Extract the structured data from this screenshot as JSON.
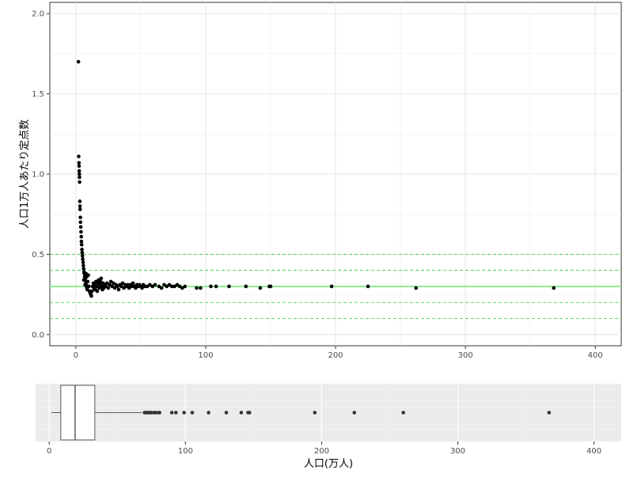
{
  "chart_data": [
    {
      "type": "scatter",
      "title": "",
      "xlabel": "",
      "ylabel": "人口1万人あたり定点数",
      "xlim": [
        -20,
        420
      ],
      "ylim": [
        -0.07,
        2.07
      ],
      "x_ticks": [
        "0",
        "100",
        "200",
        "300",
        "400"
      ],
      "y_ticks": [
        "0.0",
        "0.5",
        "1.0",
        "1.5",
        "2.0"
      ],
      "grid": true,
      "colors": {
        "points": "#000000",
        "mean_line": "#90ee90",
        "band_lines": "#33cc33"
      },
      "reference_lines": [
        {
          "y": 0.3,
          "style": "solid"
        },
        {
          "y": 0.1,
          "style": "dashed"
        },
        {
          "y": 0.2,
          "style": "dashed"
        },
        {
          "y": 0.4,
          "style": "dashed"
        },
        {
          "y": 0.5,
          "style": "dashed"
        }
      ],
      "points": [
        [
          2,
          1.7
        ],
        [
          2.2,
          1.11
        ],
        [
          2.4,
          1.07
        ],
        [
          2.5,
          1.05
        ],
        [
          2.6,
          1.02
        ],
        [
          2.7,
          1.0
        ],
        [
          2.8,
          0.98
        ],
        [
          2.9,
          0.95
        ],
        [
          3.1,
          0.83
        ],
        [
          3.2,
          0.8
        ],
        [
          3.3,
          0.78
        ],
        [
          3.5,
          0.73
        ],
        [
          3.6,
          0.7
        ],
        [
          3.8,
          0.67
        ],
        [
          4.0,
          0.64
        ],
        [
          4.2,
          0.61
        ],
        [
          4.3,
          0.58
        ],
        [
          4.5,
          0.56
        ],
        [
          4.7,
          0.53
        ],
        [
          4.9,
          0.51
        ],
        [
          5.1,
          0.49
        ],
        [
          5.3,
          0.47
        ],
        [
          5.6,
          0.45
        ],
        [
          5.8,
          0.43
        ],
        [
          6.0,
          0.41
        ],
        [
          6.3,
          0.39
        ],
        [
          6.5,
          0.38
        ],
        [
          6.8,
          0.36
        ],
        [
          7.0,
          0.35
        ],
        [
          7.3,
          0.34
        ],
        [
          7.6,
          0.33
        ],
        [
          7.9,
          0.31
        ],
        [
          8.2,
          0.3
        ],
        [
          8.5,
          0.29
        ],
        [
          8.8,
          0.28
        ],
        [
          6.2,
          0.34
        ],
        [
          7.1,
          0.31
        ],
        [
          7.8,
          0.38
        ],
        [
          8.4,
          0.36
        ],
        [
          9.2,
          0.33
        ],
        [
          9.6,
          0.37
        ],
        [
          10.1,
          0.3
        ],
        [
          10.5,
          0.27
        ],
        [
          11.0,
          0.26
        ],
        [
          11.5,
          0.25
        ],
        [
          12.0,
          0.24
        ],
        [
          12.5,
          0.27
        ],
        [
          13.0,
          0.3
        ],
        [
          13.5,
          0.32
        ],
        [
          14.0,
          0.29
        ],
        [
          14.5,
          0.31
        ],
        [
          15.0,
          0.28
        ],
        [
          15.5,
          0.33
        ],
        [
          16.0,
          0.3
        ],
        [
          16.5,
          0.27
        ],
        [
          17.0,
          0.32
        ],
        [
          17.5,
          0.34
        ],
        [
          18.0,
          0.29
        ],
        [
          18.5,
          0.31
        ],
        [
          19.0,
          0.33
        ],
        [
          19.5,
          0.35
        ],
        [
          20.0,
          0.3
        ],
        [
          20.5,
          0.28
        ],
        [
          21.0,
          0.32
        ],
        [
          21.5,
          0.29
        ],
        [
          22.0,
          0.31
        ],
        [
          23.0,
          0.3
        ],
        [
          24.0,
          0.32
        ],
        [
          25.0,
          0.29
        ],
        [
          26.0,
          0.31
        ],
        [
          27.0,
          0.33
        ],
        [
          28.0,
          0.3
        ],
        [
          29.0,
          0.32
        ],
        [
          30.0,
          0.29
        ],
        [
          31.0,
          0.31
        ],
        [
          32.0,
          0.3
        ],
        [
          33.0,
          0.28
        ],
        [
          34.0,
          0.31
        ],
        [
          35.0,
          0.3
        ],
        [
          36.0,
          0.32
        ],
        [
          37.0,
          0.29
        ],
        [
          38.0,
          0.31
        ],
        [
          39.0,
          0.3
        ],
        [
          40.0,
          0.31
        ],
        [
          41.0,
          0.29
        ],
        [
          42.0,
          0.31
        ],
        [
          43.0,
          0.3
        ],
        [
          44.0,
          0.32
        ],
        [
          45.0,
          0.3
        ],
        [
          46.0,
          0.29
        ],
        [
          47.0,
          0.31
        ],
        [
          48.0,
          0.3
        ],
        [
          49.0,
          0.31
        ],
        [
          50.0,
          0.3
        ],
        [
          51.0,
          0.29
        ],
        [
          52.0,
          0.31
        ],
        [
          53.0,
          0.3
        ],
        [
          55.0,
          0.3
        ],
        [
          57.0,
          0.31
        ],
        [
          59.0,
          0.3
        ],
        [
          61.0,
          0.31
        ],
        [
          64.0,
          0.3
        ],
        [
          66.0,
          0.29
        ],
        [
          68.0,
          0.31
        ],
        [
          70.0,
          0.3
        ],
        [
          72.0,
          0.31
        ],
        [
          74.0,
          0.3
        ],
        [
          76.0,
          0.3
        ],
        [
          78.0,
          0.31
        ],
        [
          80.0,
          0.3
        ],
        [
          82.0,
          0.29
        ],
        [
          84.0,
          0.3
        ],
        [
          93.0,
          0.29
        ],
        [
          96.0,
          0.29
        ],
        [
          104.0,
          0.3
        ],
        [
          108.0,
          0.3
        ],
        [
          118.0,
          0.3
        ],
        [
          131.0,
          0.3
        ],
        [
          142.0,
          0.29
        ],
        [
          149.0,
          0.3
        ],
        [
          150.0,
          0.3
        ],
        [
          197.0,
          0.3
        ],
        [
          225.0,
          0.3
        ],
        [
          262.0,
          0.29
        ],
        [
          368.0,
          0.29
        ]
      ]
    },
    {
      "type": "boxplot",
      "title": "",
      "xlabel": "人口(万人)",
      "ylabel": "",
      "xlim": [
        -10,
        420
      ],
      "x_ticks": [
        "0",
        "100",
        "200",
        "300",
        "400"
      ],
      "grid": true,
      "colors": {
        "panel": "#ebebeb",
        "outliers": "#333333"
      },
      "box": {
        "min": 1.5,
        "q1": 8.5,
        "median": 19.0,
        "q3": 33.5,
        "whisker_high": 68.0
      },
      "outliers": [
        70,
        71,
        72,
        73,
        74,
        75,
        77,
        78,
        80,
        81,
        90,
        93,
        99,
        105,
        117,
        130,
        141,
        146,
        147,
        195,
        224,
        260,
        367
      ]
    }
  ]
}
